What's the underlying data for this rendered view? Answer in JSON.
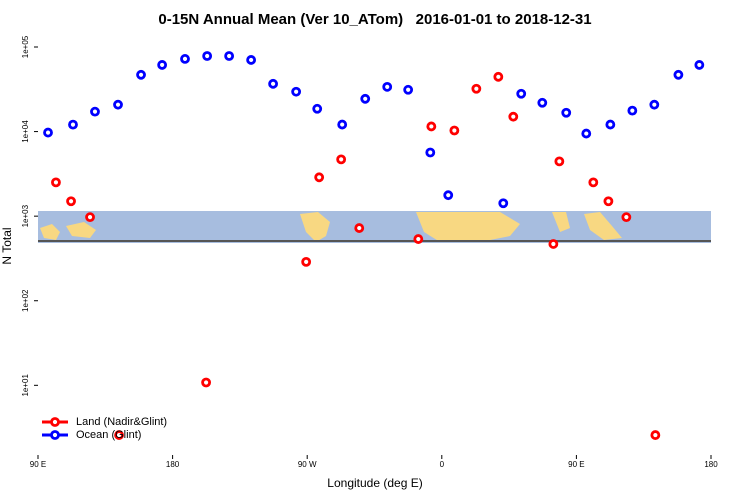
{
  "chart_data": {
    "type": "scatter",
    "title": "0-15N Annual Mean (Ver 10_ATom)   2016-01-01 to 2018-12-31",
    "x_label": "Longitude (deg E)",
    "y_label": "N Total",
    "log_y": true,
    "legend_position": "bottom-left",
    "xlim": [
      90,
      540
    ],
    "xticks": [
      {
        "value": 90,
        "label": "90 E"
      },
      180,
      {
        "value": 270,
        "label": "90 W"
      },
      {
        "value": 360,
        "label": "0"
      },
      {
        "value": 450,
        "label": "90 E"
      },
      {
        "value": 540,
        "label": "180"
      }
    ],
    "ylim": [
      1.5,
      125000
    ],
    "yticks": [
      {
        "value": 10,
        "label": "1e+01"
      },
      {
        "value": 100,
        "label": "1e+02"
      },
      {
        "value": 1000,
        "label": "1e+03"
      },
      {
        "value": 10000,
        "label": "1e+04"
      },
      {
        "value": 100000,
        "label": "1e+05"
      }
    ],
    "series": [
      {
        "name": "Land (Nadir&Glint)",
        "color": "#ff0000",
        "x": [
          102.0,
          112.1,
          124.8,
          144.2,
          202.4,
          269.3,
          278.0,
          292.7,
          304.8,
          344.3,
          353.0,
          368.4,
          383.1,
          397.8,
          407.8,
          434.6,
          438.6,
          461.3,
          471.4,
          483.4,
          502.8
        ],
        "values": [
          2510,
          1500,
          973,
          2.58,
          10.8,
          288,
          2880,
          4690,
          723,
          536,
          11500,
          10300,
          32100,
          44400,
          15000,
          469,
          4440,
          2510,
          1500,
          973,
          2.58
        ]
      },
      {
        "name": "Ocean (Glint)",
        "color": "#0000ff",
        "x": [
          96.7,
          113.4,
          128.1,
          143.5,
          158.9,
          173.0,
          188.3,
          203.1,
          217.8,
          232.5,
          247.2,
          262.6,
          276.7,
          293.4,
          308.8,
          323.5,
          337.5,
          352.3,
          364.3,
          401.1,
          413.1,
          427.2,
          443.2,
          456.6,
          472.7,
          487.4,
          502.1,
          518.2,
          532.2
        ],
        "values": [
          9730,
          12080,
          17200,
          20800,
          46900,
          61400,
          72300,
          78300,
          78300,
          70300,
          36700,
          29600,
          18600,
          12100,
          24400,
          33800,
          31200,
          5660,
          1770,
          1420,
          28000,
          21900,
          16700,
          9470,
          12100,
          17700,
          20800,
          46900,
          61400
        ]
      }
    ]
  }
}
